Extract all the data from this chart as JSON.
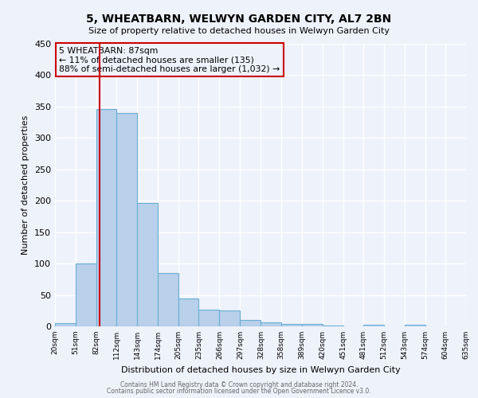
{
  "title": "5, WHEATBARN, WELWYN GARDEN CITY, AL7 2BN",
  "subtitle": "Size of property relative to detached houses in Welwyn Garden City",
  "xlabel": "Distribution of detached houses by size in Welwyn Garden City",
  "ylabel": "Number of detached properties",
  "bar_values": [
    5,
    100,
    346,
    340,
    197,
    85,
    45,
    27,
    25,
    10,
    6,
    4,
    4,
    1,
    0,
    3,
    0,
    2,
    0,
    0
  ],
  "bin_edges": [
    20,
    51,
    82,
    112,
    143,
    174,
    205,
    235,
    266,
    297,
    328,
    358,
    389,
    420,
    451,
    481,
    512,
    543,
    574,
    604,
    635
  ],
  "tick_labels": [
    "20sqm",
    "51sqm",
    "82sqm",
    "112sqm",
    "143sqm",
    "174sqm",
    "205sqm",
    "235sqm",
    "266sqm",
    "297sqm",
    "328sqm",
    "358sqm",
    "389sqm",
    "420sqm",
    "451sqm",
    "481sqm",
    "512sqm",
    "543sqm",
    "574sqm",
    "604sqm",
    "635sqm"
  ],
  "bar_color": "#b8d0ea",
  "bar_edge_color": "#6aaed6",
  "ylim": [
    0,
    450
  ],
  "yticks": [
    0,
    50,
    100,
    150,
    200,
    250,
    300,
    350,
    400,
    450
  ],
  "vline_x": 87,
  "vline_color": "#cc0000",
  "annotation_title": "5 WHEATBARN: 87sqm",
  "annotation_line1": "← 11% of detached houses are smaller (135)",
  "annotation_line2": "88% of semi-detached houses are larger (1,032) →",
  "annotation_box_color": "#cc0000",
  "footer1": "Contains HM Land Registry data © Crown copyright and database right 2024.",
  "footer2": "Contains public sector information licensed under the Open Government Licence v3.0.",
  "background_color": "#eef2fb",
  "grid_color": "#ffffff"
}
